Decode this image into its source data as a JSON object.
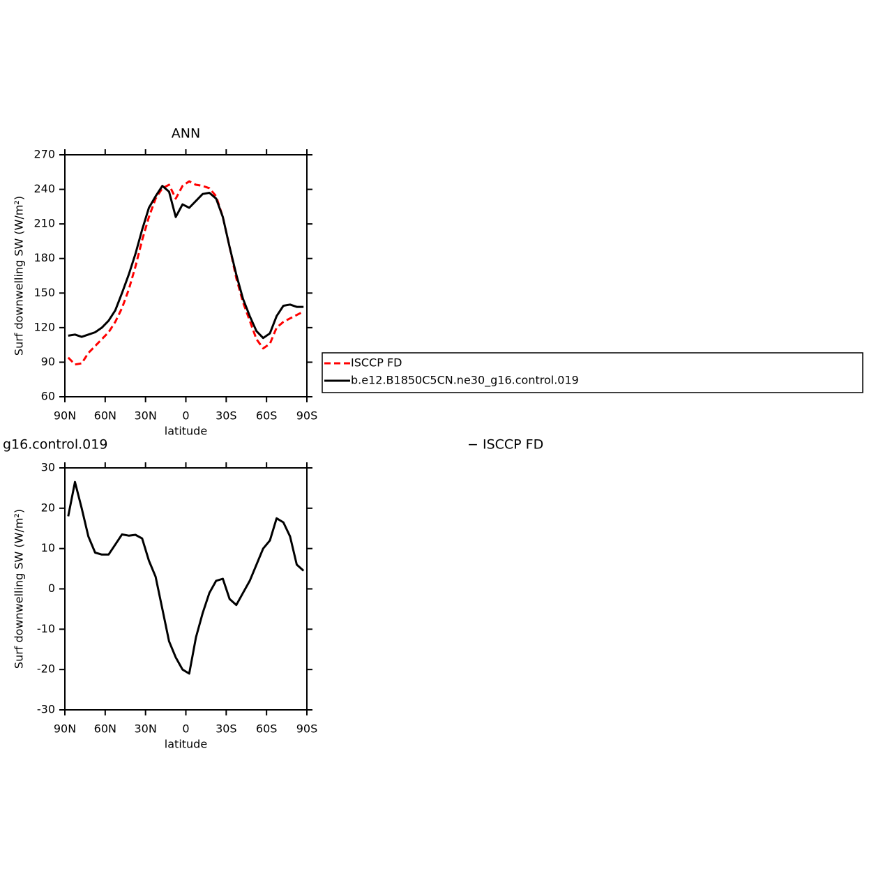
{
  "chart_data": [
    {
      "type": "line",
      "title": "ANN",
      "xlabel": "latitude",
      "ylabel": "Surf downwelling SW (W/m²)",
      "x": [
        87.5,
        82.5,
        77.5,
        72.5,
        67.5,
        62.5,
        57.5,
        52.5,
        47.5,
        42.5,
        37.5,
        32.5,
        27.5,
        22.5,
        17.5,
        12.5,
        7.5,
        2.5,
        -2.5,
        -7.5,
        -12.5,
        -17.5,
        -22.5,
        -27.5,
        -32.5,
        -37.5,
        -42.5,
        -47.5,
        -52.5,
        -57.5,
        -62.5,
        -67.5,
        -72.5,
        -77.5,
        -82.5,
        -87.5
      ],
      "series": [
        {
          "name": "ISCCP FD",
          "color": "#ff0000",
          "linestyle": "dashed",
          "values": [
            94,
            88,
            89,
            98,
            104,
            110,
            116,
            125,
            137,
            153,
            173,
            196,
            216,
            232,
            241,
            244,
            232,
            243,
            247,
            244,
            243,
            241,
            234,
            216,
            190,
            163,
            142,
            126,
            110,
            102,
            106,
            120,
            125,
            128,
            131,
            134
          ]
        },
        {
          "name": "b.e12.B1850C5CN.ne30_g16.control.019",
          "color": "#000000",
          "linestyle": "solid",
          "values": [
            113,
            114,
            112,
            114,
            116,
            120,
            126,
            135,
            150,
            166,
            184,
            205,
            224,
            234,
            243,
            238,
            216,
            227,
            224,
            230,
            236,
            237,
            232,
            216,
            190,
            166,
            145,
            130,
            117,
            111,
            115,
            130,
            139,
            140,
            138,
            138
          ]
        }
      ],
      "xlim": [
        90,
        -90
      ],
      "xticks": [
        {
          "value": 90,
          "label": "90N"
        },
        {
          "value": 60,
          "label": "60N"
        },
        {
          "value": 30,
          "label": "30N"
        },
        0,
        {
          "value": -30,
          "label": "30S"
        },
        {
          "value": -60,
          "label": "60S"
        },
        {
          "value": -90,
          "label": "90S"
        }
      ],
      "ylim": [
        60,
        270
      ],
      "yticks": [
        60,
        90,
        120,
        150,
        180,
        210,
        240,
        270
      ],
      "legend": "outside-right"
    },
    {
      "type": "line",
      "title": [
        "g16.control.019",
        "− ISCCP FD"
      ],
      "xlabel": "latitude",
      "ylabel": "Surf downwelling SW (W/m²)",
      "x": [
        87.5,
        82.5,
        77.5,
        72.5,
        67.5,
        62.5,
        57.5,
        52.5,
        47.5,
        42.5,
        37.5,
        32.5,
        27.5,
        22.5,
        17.5,
        12.5,
        7.5,
        2.5,
        -2.5,
        -7.5,
        -12.5,
        -17.5,
        -22.5,
        -27.5,
        -32.5,
        -37.5,
        -42.5,
        -47.5,
        -52.5,
        -57.5,
        -62.5,
        -67.5,
        -72.5,
        -77.5,
        -82.5,
        -87.5
      ],
      "series": [
        {
          "color": "#000000",
          "linestyle": "solid",
          "values": [
            18,
            26.5,
            20,
            13,
            9,
            8.5,
            8.5,
            11,
            13.5,
            13.2,
            13.4,
            12.5,
            7,
            3,
            -5,
            -13,
            -17,
            -20,
            -21,
            -12,
            -6,
            -1,
            2,
            2.5,
            -2.5,
            -4,
            -1,
            2,
            6,
            10,
            12,
            17.5,
            16.5,
            13,
            6,
            4.5
          ]
        }
      ],
      "xlim": [
        90,
        -90
      ],
      "xticks": [
        {
          "value": 90,
          "label": "90N"
        },
        {
          "value": 60,
          "label": "60N"
        },
        {
          "value": 30,
          "label": "30N"
        },
        0,
        {
          "value": -30,
          "label": "30S"
        },
        {
          "value": -60,
          "label": "60S"
        },
        {
          "value": -90,
          "label": "90S"
        }
      ],
      "ylim": [
        -30,
        30
      ],
      "yticks": [
        -30,
        -20,
        -10,
        0,
        10,
        20,
        30
      ]
    }
  ]
}
